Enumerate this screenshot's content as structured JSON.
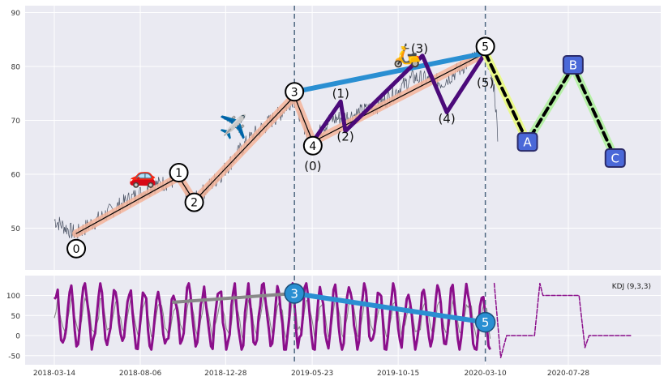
{
  "colors": {
    "panel_bg": "#eaeaf2",
    "grid": "#ffffff",
    "price": "#4a5263",
    "trend": "#000000",
    "trend_glow": "#f5b49a",
    "wave_purple": "#4b0a7a",
    "big_line": "#2a8fd2",
    "projection_green": "#b7f0a8",
    "projection_yellow": "#e9f98a",
    "abc_box": "#4a68d8",
    "kdj": "#8b0f8b",
    "kdj_secondary": "#888888",
    "vline": "#4d6680"
  },
  "chart_data": [
    {
      "type": "line",
      "panel": "price",
      "title": "",
      "ylim": [
        42,
        91
      ],
      "y_ticks": [
        50,
        60,
        70,
        80,
        90
      ],
      "grid": true,
      "price_path": [
        [
          "2018-03-14",
          51.5
        ],
        [
          "2018-04-10",
          49.5
        ],
        [
          "2018-04-20",
          49.0
        ],
        [
          "2018-06-01",
          52.0
        ],
        [
          "2018-07-20",
          55.5
        ],
        [
          "2018-09-01",
          58.0
        ],
        [
          "2018-10-10",
          59.0
        ],
        [
          "2018-10-25",
          56.0
        ],
        [
          "2018-11-05",
          55.0
        ],
        [
          "2018-12-20",
          60.0
        ],
        [
          "2019-02-10",
          67.0
        ],
        [
          "2019-04-01",
          71.5
        ],
        [
          "2019-04-23",
          74.5
        ],
        [
          "2019-05-05",
          70.0
        ],
        [
          "2019-05-24",
          66.0
        ],
        [
          "2019-06-20",
          70.0
        ],
        [
          "2019-08-01",
          71.0
        ],
        [
          "2019-09-15",
          73.0
        ],
        [
          "2019-11-10",
          78.0
        ],
        [
          "2019-12-28",
          77.0
        ],
        [
          "2020-02-01",
          80.0
        ],
        [
          "2020-03-10",
          83.0
        ],
        [
          "2020-03-25",
          76.0
        ],
        [
          "2020-04-01",
          66.0
        ]
      ],
      "trend_line": [
        [
          "2018-04-20",
          49.0
        ],
        [
          "2018-10-10",
          59.5
        ],
        [
          "2018-11-05",
          55.0
        ],
        [
          "2019-04-23",
          74.5
        ],
        [
          "2019-05-24",
          66.0
        ],
        [
          "2020-03-10",
          82.5
        ]
      ],
      "big_wave_line": [
        [
          "2019-04-23",
          75.3
        ],
        [
          "2020-03-10",
          82.5
        ]
      ],
      "sub_waves": [
        [
          "2019-05-24",
          66.0
        ],
        [
          "2019-07-10",
          73.5
        ],
        [
          "2019-07-18",
          68.0
        ],
        [
          "2019-11-25",
          82.0
        ],
        [
          "2020-01-05",
          71.5
        ],
        [
          "2020-03-10",
          82.5
        ]
      ],
      "projection": [
        [
          "2020-03-10",
          82.5
        ],
        [
          "2020-05-20",
          66.0
        ],
        [
          "2020-08-05",
          80.0
        ],
        [
          "2020-10-15",
          63.0
        ]
      ],
      "wave_markers": [
        {
          "label": "0",
          "x": "2018-04-20",
          "y": 49.0,
          "lx": "2018-04-20",
          "ly": 46.2
        },
        {
          "label": "1",
          "x": "2018-10-10",
          "y": 60.3,
          "lx": "2018-10-10",
          "ly": 60.3
        },
        {
          "label": "2",
          "x": "2018-11-05",
          "y": 55.0,
          "lx": "2018-11-05",
          "ly": 54.8
        },
        {
          "label": "3",
          "x": "2019-04-23",
          "y": 75.3,
          "lx": "2019-04-23",
          "ly": 75.3
        },
        {
          "label": "4",
          "x": "2019-05-24",
          "y": 65.3,
          "lx": "2019-05-24",
          "ly": 65.3
        },
        {
          "label": "5",
          "x": "2020-03-10",
          "y": 83.7,
          "lx": "2020-03-10",
          "ly": 83.7
        }
      ],
      "sub_wave_labels": [
        {
          "label": "(0)",
          "x": "2019-05-24",
          "y": 61.5
        },
        {
          "label": "(1)",
          "x": "2019-07-10",
          "y": 75.0
        },
        {
          "label": "(2)",
          "x": "2019-07-18",
          "y": 67.0
        },
        {
          "label": "(3)",
          "x": "2019-11-20",
          "y": 83.3
        },
        {
          "label": "(4)",
          "x": "2020-01-05",
          "y": 70.3
        },
        {
          "label": "(5)",
          "x": "2020-03-10",
          "y": 77.0
        }
      ],
      "abc_labels": [
        {
          "label": "A",
          "x": "2020-05-20",
          "y": 66.0
        },
        {
          "label": "B",
          "x": "2020-08-05",
          "y": 80.3
        },
        {
          "label": "C",
          "x": "2020-10-15",
          "y": 63.0
        }
      ],
      "emojis": [
        {
          "symbol": "🚗",
          "x": "2018-08-10",
          "y": 60.0
        },
        {
          "symbol": "✈️",
          "x": "2019-01-10",
          "y": 69.0
        },
        {
          "symbol": "🛵",
          "x": "2019-10-30",
          "y": 82.3
        }
      ],
      "vlines": [
        "2019-04-23",
        "2020-03-10"
      ]
    },
    {
      "type": "line",
      "panel": "indicator",
      "legend_text": "KDJ (9,3,3)",
      "legend_position": "top-right",
      "ylim": [
        -65,
        145
      ],
      "y_ticks": [
        -50,
        0,
        50,
        100
      ],
      "grid": true,
      "x_tick_labels": [
        "2018-03-14",
        "2018-08-06",
        "2018-12-28",
        "2019-05-23",
        "2019-10-15",
        "2020-03-10",
        "2020-07-28"
      ],
      "trend_segments": [
        {
          "color": "grey",
          "points": [
            [
              "2018-10-01",
              83
            ],
            [
              "2019-04-23",
              105
            ]
          ]
        },
        {
          "color": "blue",
          "points": [
            [
              "2019-04-23",
              105
            ],
            [
              "2020-03-10",
              33
            ]
          ]
        }
      ],
      "circle_labels": [
        {
          "label": "3",
          "x": "2019-04-23",
          "y": 105
        },
        {
          "label": "5",
          "x": "2020-03-10",
          "y": 33
        }
      ],
      "tail_pattern": [
        [
          "2020-03-25",
          130
        ],
        [
          "2020-04-05",
          -55
        ],
        [
          "2020-04-15",
          0
        ],
        [
          "2020-06-01",
          0
        ],
        [
          "2020-06-10",
          130
        ],
        [
          "2020-06-15",
          100
        ],
        [
          "2020-08-15",
          100
        ],
        [
          "2020-08-25",
          -30
        ],
        [
          "2020-09-01",
          0
        ],
        [
          "2020-11-10",
          0
        ]
      ],
      "vlines": [
        "2019-04-23",
        "2020-03-10"
      ]
    }
  ]
}
